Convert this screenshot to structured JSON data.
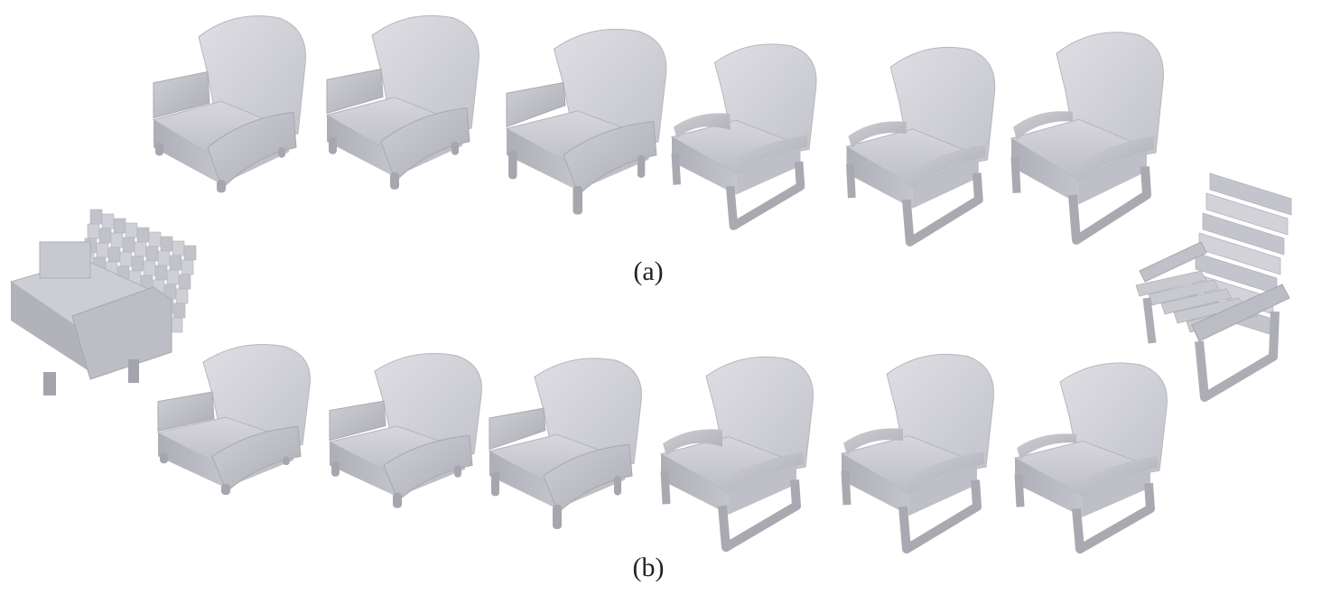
{
  "figure": {
    "label_a": "(a)",
    "label_b": "(b)",
    "shape_color": "#c7c7cf",
    "shape_shadow_color": "#9e9ea6",
    "shape_highlight_color": "#dcdce2",
    "source_shape": {
      "name": "voxel-armchair-source",
      "style": "voxel-armchair"
    },
    "target_shape": {
      "name": "voxel-lounge-chair-target",
      "style": "slatted-cantilever-chair"
    },
    "row_a": [
      {
        "name": "interp-a-1",
        "blend": 0.0
      },
      {
        "name": "interp-a-2",
        "blend": 0.1
      },
      {
        "name": "interp-a-3",
        "blend": 0.35
      },
      {
        "name": "interp-a-4",
        "blend": 0.6
      },
      {
        "name": "interp-a-5",
        "blend": 0.85
      },
      {
        "name": "interp-a-6",
        "blend": 1.0
      }
    ],
    "row_b": [
      {
        "name": "interp-b-1",
        "blend": 0.0
      },
      {
        "name": "interp-b-2",
        "blend": 0.1
      },
      {
        "name": "interp-b-3",
        "blend": 0.3
      },
      {
        "name": "interp-b-4",
        "blend": 0.6
      },
      {
        "name": "interp-b-5",
        "blend": 0.85
      },
      {
        "name": "interp-b-6",
        "blend": 1.0
      }
    ]
  }
}
